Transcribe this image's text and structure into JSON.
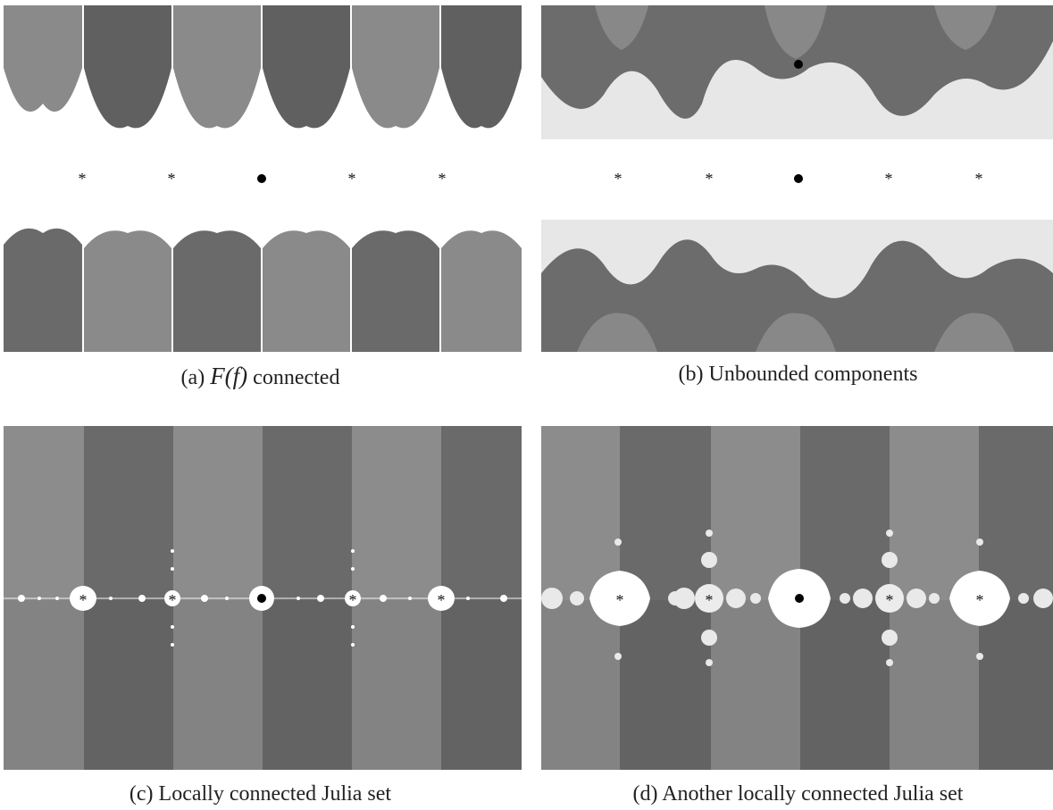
{
  "captions": {
    "a": {
      "prefix": "(a) ",
      "math": "F(f)",
      "suffix": " connected"
    },
    "b": "(b) Unbounded components",
    "c": "(c) Locally connected Julia set",
    "d": "(d) Another locally connected Julia set"
  },
  "markers": {
    "star": "*"
  },
  "colors": {
    "dark_gray": "#5f5f5f",
    "mid_gray": "#7e7e7e",
    "light_gray": "#9c9c9c",
    "pale": "#e6e6e6",
    "background": "#ffffff",
    "ink": "#111111"
  }
}
